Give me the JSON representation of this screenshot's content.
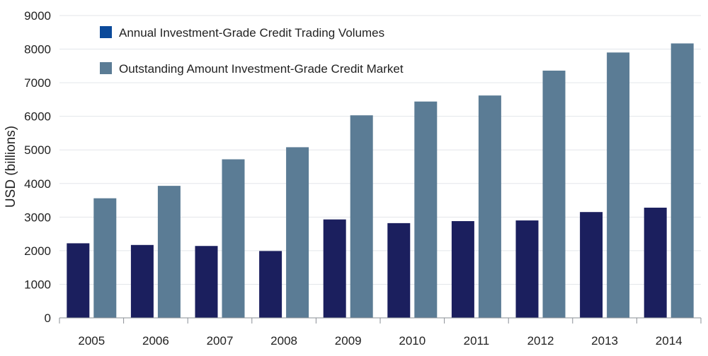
{
  "chart_data": {
    "type": "bar",
    "title": "",
    "xlabel": "",
    "ylabel": "USD (billions)",
    "ylim": [
      0,
      9000
    ],
    "yticks": [
      0,
      1000,
      2000,
      3000,
      4000,
      5000,
      6000,
      7000,
      8000,
      9000
    ],
    "grid": true,
    "legend_position": "top-left",
    "categories": [
      "2005",
      "2006",
      "2007",
      "2008",
      "2009",
      "2010",
      "2011",
      "2012",
      "2013",
      "2014"
    ],
    "series": [
      {
        "name": "Annual Investment-Grade Credit Trading Volumes",
        "color": "#1b1f5e",
        "legend_color": "#0b4a9a",
        "values": [
          2220,
          2170,
          2140,
          1990,
          2930,
          2820,
          2880,
          2900,
          3150,
          3280
        ]
      },
      {
        "name": "Outstanding Amount Investment-Grade Credit Market",
        "color": "#5b7c95",
        "legend_color": "#5b7c95",
        "values": [
          3560,
          3930,
          4720,
          5080,
          6030,
          6440,
          6620,
          7360,
          7900,
          8170
        ]
      }
    ]
  }
}
